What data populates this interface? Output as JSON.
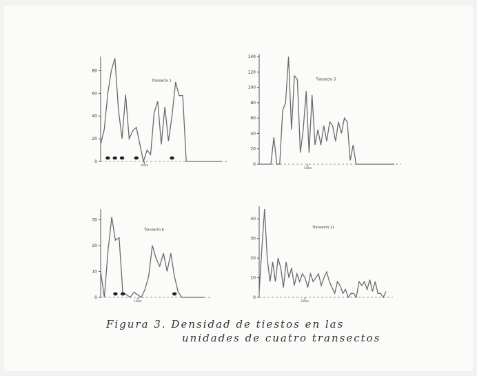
{
  "caption": {
    "line1": "Figura 3.  Densidad de tiestos en las",
    "line2": "unidades de cuatro transectos"
  },
  "chart_data": [
    {
      "type": "line",
      "title": "Transecto 1",
      "x_marker": "100m",
      "ylim": [
        0,
        90
      ],
      "yticks": [
        0,
        20,
        40,
        60,
        80
      ],
      "values": [
        15,
        28,
        60,
        80,
        91,
        45,
        20,
        59,
        20,
        27,
        30,
        15,
        0,
        10,
        6,
        43,
        53,
        15,
        48,
        18,
        40,
        70,
        58,
        58,
        0,
        0,
        0,
        0,
        0,
        0,
        0,
        0,
        0,
        0,
        0
      ],
      "dots_at": [
        1,
        2,
        3,
        5,
        10
      ]
    },
    {
      "type": "line",
      "title": "Transecto 3",
      "x_marker": "100m",
      "ylim": [
        0,
        140
      ],
      "yticks": [
        0,
        20,
        40,
        60,
        80,
        100,
        120,
        140
      ],
      "values": [
        0,
        0,
        0,
        0,
        0,
        35,
        0,
        0,
        70,
        80,
        140,
        45,
        115,
        110,
        15,
        45,
        95,
        15,
        90,
        25,
        45,
        25,
        50,
        30,
        55,
        50,
        30,
        55,
        40,
        60,
        55,
        5,
        25,
        0,
        0,
        0,
        0,
        0,
        0,
        0,
        0,
        0,
        0,
        0,
        0,
        0,
        0
      ],
      "dots_at": []
    },
    {
      "type": "line",
      "title": "Transecto 6",
      "x_marker": "100m",
      "ylim": [
        0,
        33
      ],
      "yticks": [
        0,
        10,
        20,
        30
      ],
      "values": [
        10,
        0,
        18,
        31,
        22,
        23,
        2,
        1,
        0,
        2,
        1,
        0,
        3,
        8,
        20,
        15,
        12,
        17,
        10,
        17,
        8,
        2,
        0,
        0,
        0,
        0,
        0,
        0,
        0
      ],
      "dots_at": [
        2,
        3,
        10
      ]
    },
    {
      "type": "line",
      "title": "Transecto 11",
      "x_marker": "100m",
      "ylim": [
        0,
        45
      ],
      "yticks": [
        0,
        10,
        20,
        30,
        40
      ],
      "values": [
        3,
        25,
        45,
        20,
        8,
        18,
        8,
        20,
        15,
        5,
        18,
        10,
        15,
        6,
        12,
        8,
        12,
        10,
        5,
        12,
        8,
        10,
        12,
        6,
        10,
        13,
        8,
        5,
        2,
        8,
        6,
        2,
        4,
        0,
        2,
        2,
        0,
        8,
        6,
        8,
        4,
        9,
        3,
        8,
        2,
        2,
        0,
        3
      ],
      "dots_at": []
    }
  ]
}
